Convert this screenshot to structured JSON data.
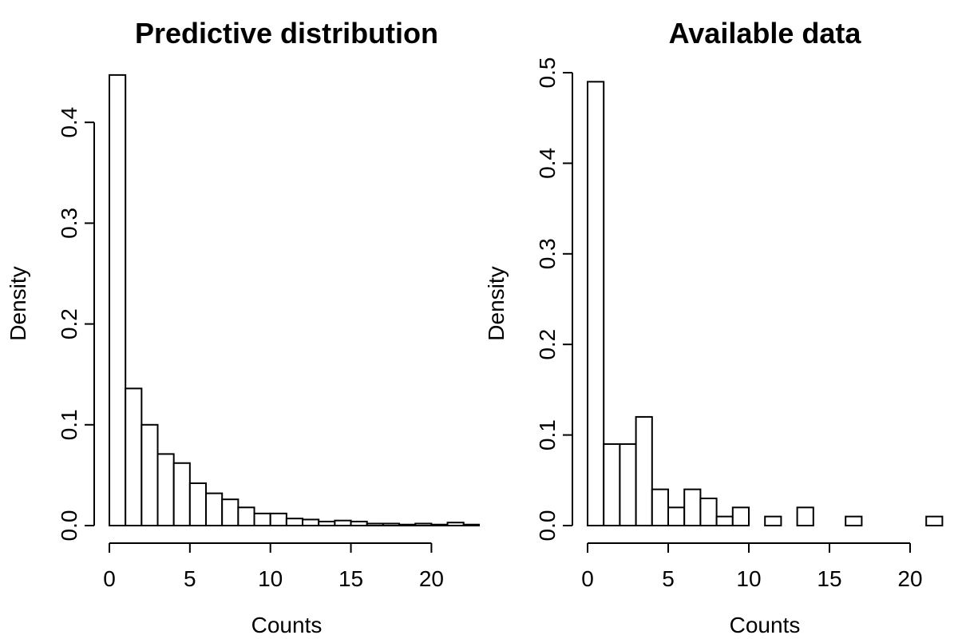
{
  "chart_data": [
    {
      "type": "bar",
      "histogram": true,
      "title": "Predictive distribution",
      "xlabel": "Counts",
      "ylabel": "Density",
      "xlim": [
        -1,
        23
      ],
      "ylim": [
        0,
        0.45
      ],
      "xticks": [
        0,
        5,
        10,
        15,
        20
      ],
      "xtick_labels": [
        "0",
        "5",
        "10",
        "15",
        "20"
      ],
      "yticks": [
        0,
        0.1,
        0.2,
        0.3,
        0.4
      ],
      "ytick_labels": [
        "0.0",
        "0.1",
        "0.2",
        "0.3",
        "0.4"
      ],
      "bin_width": 1,
      "bin_starts": [
        0,
        1,
        2,
        3,
        4,
        5,
        6,
        7,
        8,
        9,
        10,
        11,
        12,
        13,
        14,
        15,
        16,
        17,
        18,
        19,
        20,
        21,
        22
      ],
      "values": [
        0.447,
        0.136,
        0.1,
        0.071,
        0.062,
        0.042,
        0.032,
        0.026,
        0.018,
        0.012,
        0.012,
        0.007,
        0.006,
        0.004,
        0.005,
        0.004,
        0.002,
        0.002,
        0.001,
        0.002,
        0.001,
        0.003,
        0.001
      ],
      "grid": false
    },
    {
      "type": "bar",
      "histogram": true,
      "title": "Available data",
      "xlabel": "Counts",
      "ylabel": "Density",
      "xlim": [
        -1,
        23
      ],
      "ylim": [
        0,
        0.5
      ],
      "xticks": [
        0,
        5,
        10,
        15,
        20
      ],
      "xtick_labels": [
        "0",
        "5",
        "10",
        "15",
        "20"
      ],
      "yticks": [
        0,
        0.1,
        0.2,
        0.3,
        0.4,
        0.5
      ],
      "ytick_labels": [
        "0.0",
        "0.1",
        "0.2",
        "0.3",
        "0.4",
        "0.5"
      ],
      "bin_width": 1,
      "bin_starts": [
        0,
        1,
        2,
        3,
        4,
        5,
        6,
        7,
        8,
        9,
        10,
        11,
        12,
        13,
        14,
        15,
        16,
        17,
        18,
        19,
        20,
        21,
        22
      ],
      "values": [
        0.49,
        0.09,
        0.09,
        0.12,
        0.04,
        0.02,
        0.04,
        0.03,
        0.01,
        0.02,
        0.0,
        0.01,
        0.0,
        0.02,
        0.0,
        0.0,
        0.01,
        0.0,
        0.0,
        0.0,
        0.0,
        0.01,
        0.0
      ],
      "grid": false
    }
  ]
}
